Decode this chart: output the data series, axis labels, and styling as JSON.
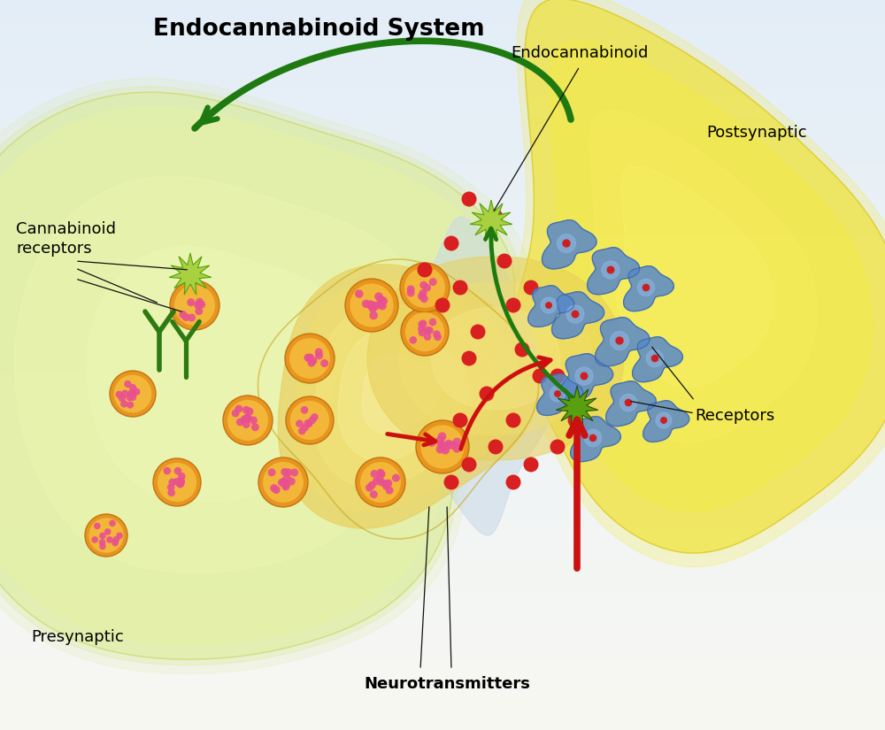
{
  "title": "Endocannabinoid System",
  "title_fontsize": 19,
  "title_fontweight": "bold",
  "labels": {
    "cannabinoid_receptors": "Cannabinoid\nreceptors",
    "presynaptic": "Presynaptic",
    "postsynaptic": "Postsynaptic",
    "endocannabinoid": "Endocannabinoid",
    "neurotransmitters": "Neurotransmitters",
    "receptors": "Receptors"
  },
  "label_fontsize": 13,
  "vesicle_outer": "#e89018",
  "vesicle_inner": "#f5c040",
  "vesicle_dot_color": "#e85090",
  "red_dot_color": "#d82020",
  "blue_color": "#5888c8",
  "blue_dark": "#3860a0",
  "green_star_light": "#a8d040",
  "green_star_dark": "#58a010",
  "green_arrow_color": "#1e7a10",
  "red_arrow_color": "#cc1010",
  "annotation_color": "#111111"
}
